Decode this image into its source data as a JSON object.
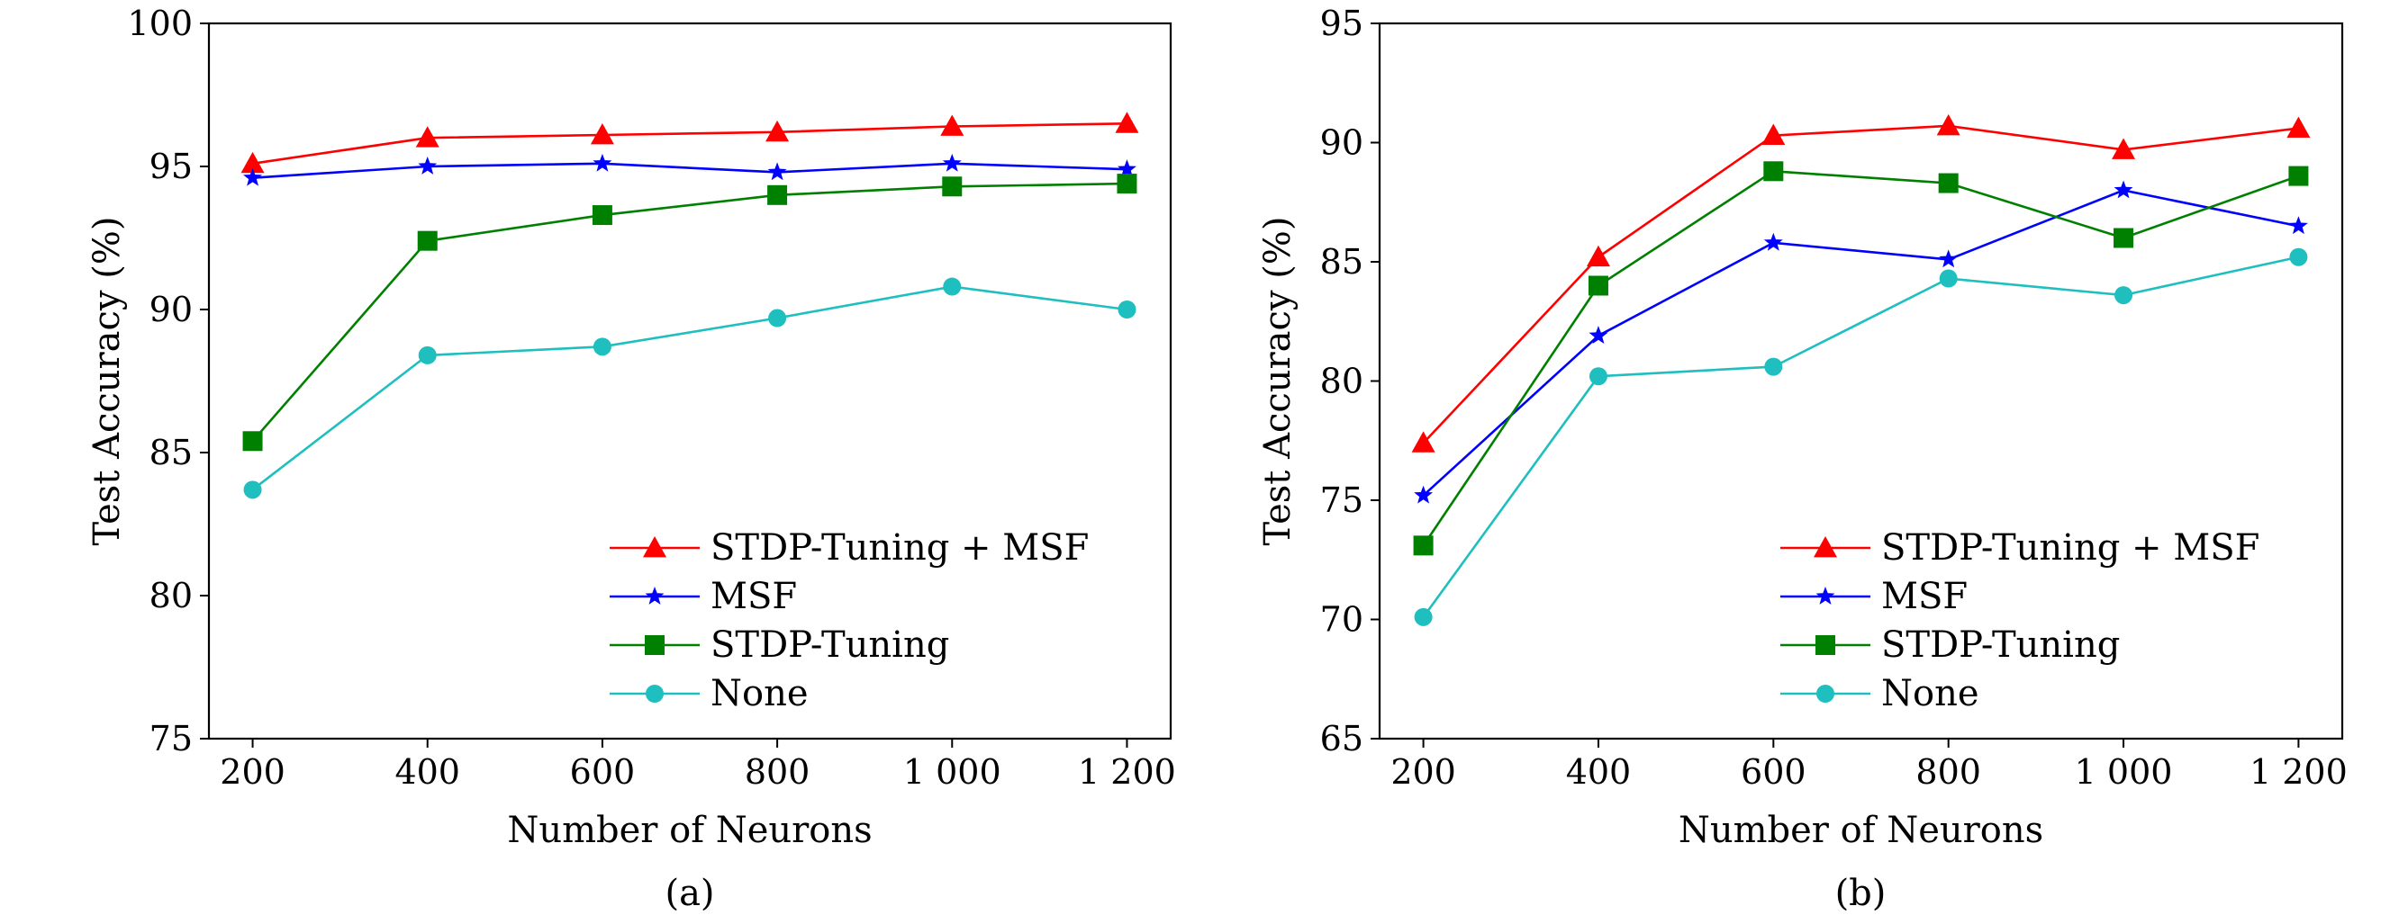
{
  "figure": {
    "panels": [
      {
        "caption": "(a)"
      },
      {
        "caption": "(b)"
      }
    ]
  },
  "chart_data": [
    {
      "type": "line",
      "xlabel": "Number of Neurons",
      "ylabel": "Test Accuracy (%)",
      "x": [
        200,
        400,
        600,
        800,
        1000,
        1200
      ],
      "x_tick_labels": [
        "200",
        "400",
        "600",
        "800",
        "1 000",
        "1 200"
      ],
      "y_ticks": [
        75,
        80,
        85,
        90,
        95,
        100
      ],
      "y_tick_labels": [
        "75",
        "80",
        "85",
        "90",
        "95",
        "100"
      ],
      "xlim": [
        150,
        1250
      ],
      "ylim": [
        75,
        100
      ],
      "grid": false,
      "legend_position": "lower-right",
      "series": [
        {
          "name": "STDP-Tuning + MSF",
          "color": "#ff0000",
          "marker": "triangle",
          "values": [
            95.1,
            96.0,
            96.1,
            96.2,
            96.4,
            96.5
          ]
        },
        {
          "name": "MSF",
          "color": "#0000ff",
          "marker": "star",
          "values": [
            94.6,
            95.0,
            95.1,
            94.8,
            95.1,
            94.9
          ]
        },
        {
          "name": "STDP-Tuning",
          "color": "#008000",
          "marker": "square",
          "values": [
            85.4,
            92.4,
            93.3,
            94.0,
            94.3,
            94.4
          ]
        },
        {
          "name": "None",
          "color": "#1fbfbf",
          "marker": "circle",
          "values": [
            83.7,
            88.4,
            88.7,
            89.7,
            90.8,
            90.0
          ]
        }
      ]
    },
    {
      "type": "line",
      "xlabel": "Number of Neurons",
      "ylabel": "Test Accuracy (%)",
      "x": [
        200,
        400,
        600,
        800,
        1000,
        1200
      ],
      "x_tick_labels": [
        "200",
        "400",
        "600",
        "800",
        "1 000",
        "1 200"
      ],
      "y_ticks": [
        65,
        70,
        75,
        80,
        85,
        90,
        95
      ],
      "y_tick_labels": [
        "65",
        "70",
        "75",
        "80",
        "85",
        "90",
        "95"
      ],
      "xlim": [
        150,
        1250
      ],
      "ylim": [
        65,
        95
      ],
      "grid": false,
      "legend_position": "lower-right",
      "series": [
        {
          "name": "STDP-Tuning + MSF",
          "color": "#ff0000",
          "marker": "triangle",
          "values": [
            77.4,
            85.2,
            90.3,
            90.7,
            89.7,
            90.6
          ]
        },
        {
          "name": "MSF",
          "color": "#0000ff",
          "marker": "star",
          "values": [
            75.2,
            81.9,
            85.8,
            85.1,
            88.0,
            86.5
          ]
        },
        {
          "name": "STDP-Tuning",
          "color": "#008000",
          "marker": "square",
          "values": [
            73.1,
            84.0,
            88.8,
            88.3,
            86.0,
            88.6
          ]
        },
        {
          "name": "None",
          "color": "#1fbfbf",
          "marker": "circle",
          "values": [
            70.1,
            80.2,
            80.6,
            84.3,
            83.6,
            85.2
          ]
        }
      ]
    }
  ]
}
